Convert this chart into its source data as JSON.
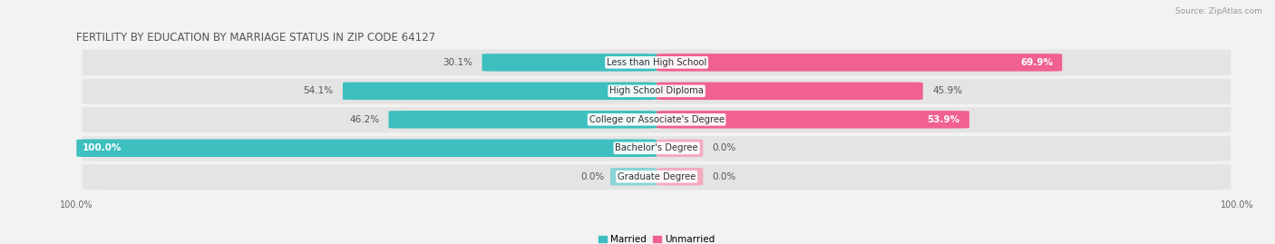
{
  "title": "FERTILITY BY EDUCATION BY MARRIAGE STATUS IN ZIP CODE 64127",
  "source": "Source: ZipAtlas.com",
  "categories": [
    "Less than High School",
    "High School Diploma",
    "College or Associate's Degree",
    "Bachelor's Degree",
    "Graduate Degree"
  ],
  "married": [
    30.1,
    54.1,
    46.2,
    100.0,
    0.0
  ],
  "unmarried": [
    69.9,
    45.9,
    53.9,
    0.0,
    0.0
  ],
  "married_color": "#3DBFBF",
  "unmarried_color": "#F06090",
  "married_color_light": "#88D4D8",
  "unmarried_color_light": "#F4AABF",
  "background_color": "#f2f2f2",
  "row_background": "#e4e4e4",
  "figsize": [
    14.06,
    2.69
  ],
  "dpi": 100,
  "title_fontsize": 8.5,
  "label_fontsize": 7.5,
  "category_fontsize": 7.2,
  "axis_label_fontsize": 7,
  "legend_fontsize": 7.5
}
